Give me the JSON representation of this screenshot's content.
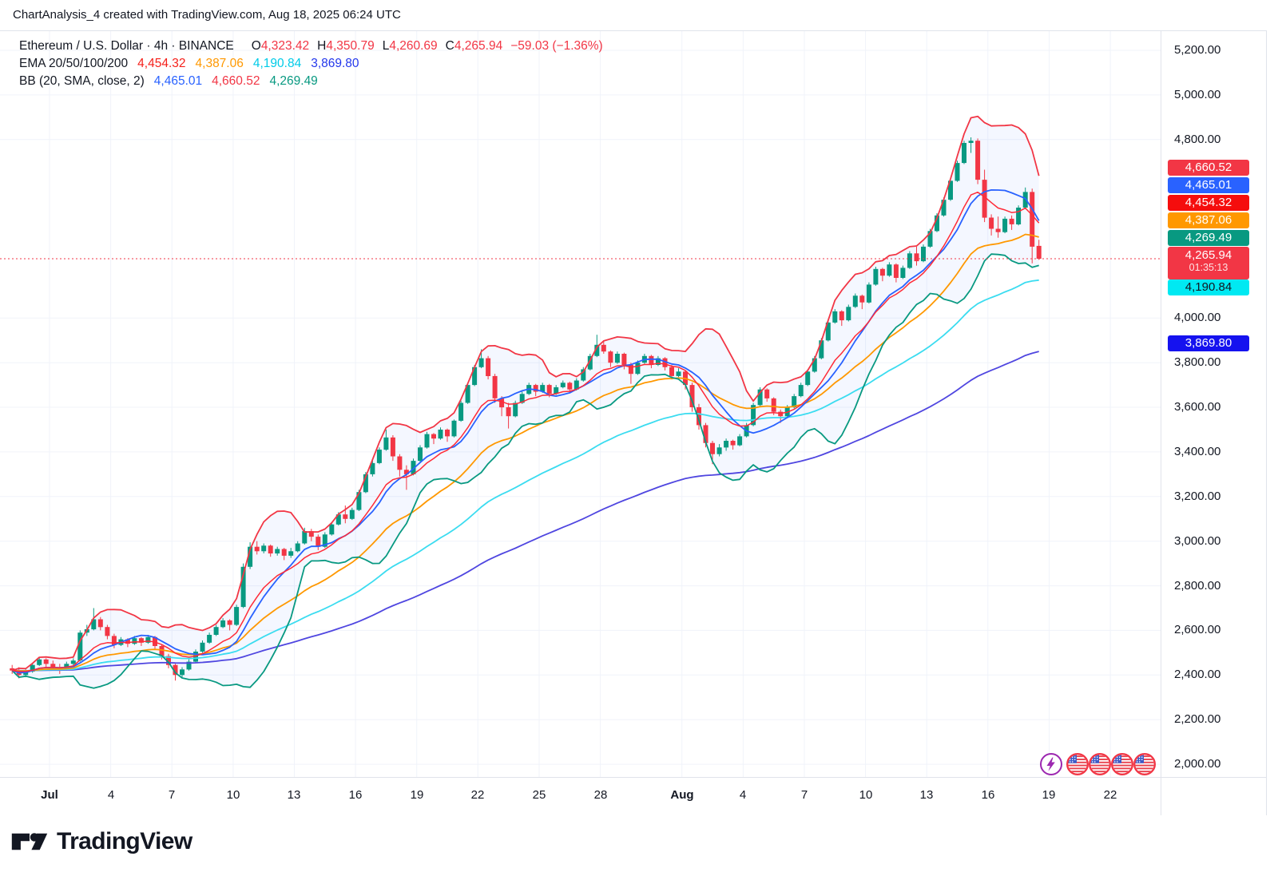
{
  "header": {
    "title": "ChartAnalysis_4 created with TradingView.com, Aug 18, 2025 06:24 UTC"
  },
  "legend": {
    "symbol": "Ethereum / U.S. Dollar · 4h · BINANCE",
    "ohlc": [
      {
        "label": "O",
        "value": "4,323.42"
      },
      {
        "label": "H",
        "value": "4,350.79"
      },
      {
        "label": "L",
        "value": "4,260.69"
      },
      {
        "label": "C",
        "value": "4,265.94"
      }
    ],
    "change": "−59.03 (−1.36%)",
    "ema": {
      "label": "EMA 20/50/100/200",
      "values": [
        {
          "text": "4,454.32",
          "color": "#F5201B"
        },
        {
          "text": "4,387.06",
          "color": "#FF9800"
        },
        {
          "text": "4,190.84",
          "color": "#00CBE8"
        },
        {
          "text": "3,869.80",
          "color": "#2337EC"
        }
      ]
    },
    "bb": {
      "label": "BB (20, SMA, close, 2)",
      "values": [
        {
          "text": "4,465.01",
          "color": "#2962FF"
        },
        {
          "text": "4,660.52",
          "color": "#F23645"
        },
        {
          "text": "4,269.49",
          "color": "#089981"
        }
      ]
    }
  },
  "price_scale": {
    "badges": [
      {
        "label": "4,660.52",
        "bg": "#F23645",
        "fg": "#FFFFFF"
      },
      {
        "label": "4,465.01",
        "bg": "#2962FF",
        "fg": "#FFFFFF"
      },
      {
        "label": "4,454.32",
        "bg": "#F50D0D",
        "fg": "#FFFFFF"
      },
      {
        "label": "4,387.06",
        "bg": "#FF9800",
        "fg": "#FFFFFF"
      },
      {
        "label": "4,269.49",
        "bg": "#089981",
        "fg": "#FFFFFF"
      },
      {
        "label": "4,265.94",
        "sub": "01:35:13",
        "bg": "#F23645",
        "fg": "#FFFFFF"
      },
      {
        "label": "4,190.84",
        "bg": "#00E9F2",
        "fg": "#131722"
      },
      {
        "label": "3,869.80",
        "bg": "#1512EF",
        "fg": "#FFFFFF",
        "price": 3869.8
      }
    ]
  },
  "events": {
    "lightning": 1,
    "flag_count": 4
  },
  "footer": {
    "brand": "TradingView"
  },
  "theme": {
    "up": "#089981",
    "down": "#F23645",
    "grid": "#F0F3FA",
    "border": "#E0E3EB",
    "text": "#131722",
    "bb_fill": "rgba(41,98,255,0.05)",
    "bb_upper": "#F23645",
    "bb_basis": "#2962FF",
    "bb_lower": "#089981",
    "ema20": "#FF2B38",
    "ema50": "#FF9800",
    "ema100": "#3BDCF0",
    "ema200": "#4F46E0",
    "accent_purple": "#9C27B0",
    "flag_ring": "#F23645"
  },
  "chart_data": {
    "type": "candlestick",
    "title": "Ethereum / U.S. Dollar",
    "interval": "4h",
    "exchange": "BINANCE",
    "last_candle": {
      "open": 4323.42,
      "high": 4350.79,
      "low": 4260.69,
      "close": 4265.94,
      "change": -59.03,
      "change_pct": -1.36
    },
    "indicators": {
      "ema": {
        "label": "EMA 20/50/100/200",
        "last_values": [
          4454.32,
          4387.06,
          4190.84,
          3869.8
        ]
      },
      "bb": {
        "label": "BB (20, SMA, close, 2)",
        "basis": 4465.01,
        "upper": 4660.52,
        "lower": 4269.49
      }
    },
    "last_price": 4265.94,
    "countdown": "01:35:13",
    "y_ticks": [
      {
        "label": "5,200.00",
        "price": 5200
      },
      {
        "label": "5,000.00",
        "price": 5000
      },
      {
        "label": "4,800.00",
        "price": 4800
      },
      {
        "label": "4,000.00",
        "price": 4000
      },
      {
        "label": "3,800.00",
        "price": 3800
      },
      {
        "label": "3,600.00",
        "price": 3600
      },
      {
        "label": "3,400.00",
        "price": 3400
      },
      {
        "label": "3,200.00",
        "price": 3200
      },
      {
        "label": "3,000.00",
        "price": 3000
      },
      {
        "label": "2,800.00",
        "price": 2800
      },
      {
        "label": "2,600.00",
        "price": 2600
      },
      {
        "label": "2,400.00",
        "price": 2400
      },
      {
        "label": "2,200.00",
        "price": 2200
      },
      {
        "label": "2,000.00",
        "price": 2000
      }
    ],
    "x_ticks": [
      {
        "label": "Jul",
        "day": 0,
        "bold": true
      },
      {
        "label": "4",
        "day": 3
      },
      {
        "label": "7",
        "day": 6
      },
      {
        "label": "10",
        "day": 9
      },
      {
        "label": "13",
        "day": 12
      },
      {
        "label": "16",
        "day": 15
      },
      {
        "label": "19",
        "day": 18
      },
      {
        "label": "22",
        "day": 21
      },
      {
        "label": "25",
        "day": 24
      },
      {
        "label": "28",
        "day": 27
      },
      {
        "label": "Aug",
        "day": 31,
        "bold": true
      },
      {
        "label": "4",
        "day": 34
      },
      {
        "label": "7",
        "day": 37
      },
      {
        "label": "10",
        "day": 40
      },
      {
        "label": "13",
        "day": 43
      },
      {
        "label": "16",
        "day": 46
      },
      {
        "label": "19",
        "day": 49
      },
      {
        "label": "22",
        "day": 52
      }
    ],
    "render": {
      "candles_per_day": 3,
      "start_day": -2,
      "ema_periods": [
        10,
        25,
        50,
        100
      ],
      "bb": {
        "period": 10,
        "mult": 2
      }
    },
    "candles": [
      [
        2430,
        2445,
        2405,
        2420
      ],
      [
        2420,
        2435,
        2385,
        2400
      ],
      [
        2400,
        2425,
        2390,
        2415
      ],
      [
        2415,
        2455,
        2410,
        2445
      ],
      [
        2445,
        2480,
        2440,
        2470
      ],
      [
        2470,
        2475,
        2430,
        2450
      ],
      [
        2450,
        2465,
        2420,
        2435
      ],
      [
        2435,
        2450,
        2405,
        2425
      ],
      [
        2425,
        2460,
        2420,
        2450
      ],
      [
        2450,
        2475,
        2440,
        2465
      ],
      [
        2465,
        2600,
        2460,
        2590
      ],
      [
        2590,
        2625,
        2575,
        2605
      ],
      [
        2605,
        2700,
        2600,
        2650
      ],
      [
        2650,
        2660,
        2600,
        2615
      ],
      [
        2615,
        2625,
        2560,
        2575
      ],
      [
        2575,
        2585,
        2520,
        2535
      ],
      [
        2535,
        2570,
        2530,
        2560
      ],
      [
        2560,
        2565,
        2525,
        2540
      ],
      [
        2540,
        2575,
        2535,
        2565
      ],
      [
        2565,
        2570,
        2530,
        2545
      ],
      [
        2545,
        2580,
        2540,
        2570
      ],
      [
        2570,
        2575,
        2515,
        2530
      ],
      [
        2530,
        2535,
        2470,
        2485
      ],
      [
        2485,
        2495,
        2430,
        2445
      ],
      [
        2445,
        2450,
        2375,
        2400
      ],
      [
        2400,
        2435,
        2390,
        2425
      ],
      [
        2425,
        2470,
        2420,
        2460
      ],
      [
        2460,
        2515,
        2455,
        2505
      ],
      [
        2505,
        2555,
        2500,
        2545
      ],
      [
        2545,
        2590,
        2540,
        2580
      ],
      [
        2580,
        2625,
        2575,
        2615
      ],
      [
        2615,
        2655,
        2610,
        2645
      ],
      [
        2645,
        2650,
        2600,
        2625
      ],
      [
        2625,
        2715,
        2620,
        2705
      ],
      [
        2705,
        2900,
        2700,
        2885
      ],
      [
        2885,
        2995,
        2875,
        2975
      ],
      [
        2975,
        3000,
        2940,
        2955
      ],
      [
        2955,
        2990,
        2945,
        2980
      ],
      [
        2980,
        2985,
        2930,
        2945
      ],
      [
        2945,
        2975,
        2935,
        2965
      ],
      [
        2965,
        2970,
        2915,
        2935
      ],
      [
        2935,
        2970,
        2925,
        2955
      ],
      [
        2955,
        3000,
        2950,
        2990
      ],
      [
        2990,
        3060,
        2985,
        3045
      ],
      [
        3045,
        3055,
        3000,
        3020
      ],
      [
        3020,
        3030,
        2960,
        2975
      ],
      [
        2975,
        3040,
        2970,
        3030
      ],
      [
        3030,
        3085,
        3025,
        3075
      ],
      [
        3075,
        3130,
        3070,
        3120
      ],
      [
        3120,
        3160,
        3080,
        3100
      ],
      [
        3100,
        3150,
        3095,
        3140
      ],
      [
        3140,
        3230,
        3135,
        3220
      ],
      [
        3220,
        3310,
        3215,
        3300
      ],
      [
        3300,
        3365,
        3290,
        3350
      ],
      [
        3350,
        3420,
        3345,
        3410
      ],
      [
        3410,
        3500,
        3405,
        3465
      ],
      [
        3465,
        3475,
        3360,
        3380
      ],
      [
        3380,
        3390,
        3290,
        3320
      ],
      [
        3320,
        3340,
        3230,
        3300
      ],
      [
        3300,
        3370,
        3295,
        3360
      ],
      [
        3360,
        3430,
        3355,
        3420
      ],
      [
        3420,
        3490,
        3415,
        3480
      ],
      [
        3480,
        3485,
        3435,
        3460
      ],
      [
        3460,
        3510,
        3455,
        3500
      ],
      [
        3500,
        3505,
        3445,
        3470
      ],
      [
        3470,
        3545,
        3465,
        3540
      ],
      [
        3540,
        3630,
        3535,
        3620
      ],
      [
        3620,
        3710,
        3615,
        3700
      ],
      [
        3700,
        3790,
        3695,
        3780
      ],
      [
        3780,
        3860,
        3775,
        3820
      ],
      [
        3820,
        3830,
        3725,
        3740
      ],
      [
        3740,
        3750,
        3620,
        3640
      ],
      [
        3640,
        3650,
        3560,
        3600
      ],
      [
        3600,
        3620,
        3505,
        3560
      ],
      [
        3560,
        3630,
        3555,
        3620
      ],
      [
        3620,
        3670,
        3615,
        3660
      ],
      [
        3660,
        3710,
        3655,
        3700
      ],
      [
        3700,
        3705,
        3650,
        3670
      ],
      [
        3670,
        3710,
        3665,
        3700
      ],
      [
        3700,
        3705,
        3645,
        3660
      ],
      [
        3660,
        3700,
        3655,
        3690
      ],
      [
        3690,
        3720,
        3685,
        3710
      ],
      [
        3710,
        3715,
        3665,
        3680
      ],
      [
        3680,
        3730,
        3675,
        3720
      ],
      [
        3720,
        3780,
        3715,
        3770
      ],
      [
        3770,
        3840,
        3765,
        3830
      ],
      [
        3830,
        3925,
        3825,
        3880
      ],
      [
        3880,
        3900,
        3840,
        3850
      ],
      [
        3850,
        3855,
        3780,
        3800
      ],
      [
        3800,
        3850,
        3795,
        3840
      ],
      [
        3840,
        3845,
        3770,
        3790
      ],
      [
        3790,
        3800,
        3705,
        3750
      ],
      [
        3750,
        3810,
        3745,
        3800
      ],
      [
        3800,
        3840,
        3795,
        3830
      ],
      [
        3830,
        3835,
        3775,
        3790
      ],
      [
        3790,
        3830,
        3785,
        3820
      ],
      [
        3820,
        3825,
        3765,
        3780
      ],
      [
        3780,
        3790,
        3725,
        3740
      ],
      [
        3740,
        3775,
        3735,
        3760
      ],
      [
        3760,
        3765,
        3680,
        3700
      ],
      [
        3700,
        3710,
        3580,
        3600
      ],
      [
        3600,
        3615,
        3500,
        3520
      ],
      [
        3520,
        3530,
        3420,
        3440
      ],
      [
        3440,
        3450,
        3345,
        3390
      ],
      [
        3390,
        3435,
        3380,
        3420
      ],
      [
        3420,
        3460,
        3405,
        3450
      ],
      [
        3450,
        3455,
        3410,
        3430
      ],
      [
        3430,
        3480,
        3425,
        3470
      ],
      [
        3470,
        3530,
        3465,
        3520
      ],
      [
        3520,
        3620,
        3515,
        3610
      ],
      [
        3610,
        3690,
        3605,
        3680
      ],
      [
        3680,
        3685,
        3625,
        3640
      ],
      [
        3640,
        3645,
        3565,
        3580
      ],
      [
        3580,
        3590,
        3530,
        3560
      ],
      [
        3560,
        3610,
        3555,
        3600
      ],
      [
        3600,
        3660,
        3595,
        3650
      ],
      [
        3650,
        3710,
        3645,
        3700
      ],
      [
        3700,
        3770,
        3695,
        3760
      ],
      [
        3760,
        3830,
        3755,
        3820
      ],
      [
        3820,
        3910,
        3815,
        3900
      ],
      [
        3900,
        3990,
        3895,
        3980
      ],
      [
        3980,
        4040,
        3975,
        4030
      ],
      [
        4030,
        4035,
        3965,
        3990
      ],
      [
        3990,
        4060,
        3985,
        4050
      ],
      [
        4050,
        4110,
        4045,
        4100
      ],
      [
        4100,
        4105,
        4040,
        4070
      ],
      [
        4070,
        4160,
        4065,
        4150
      ],
      [
        4150,
        4230,
        4145,
        4220
      ],
      [
        4220,
        4225,
        4165,
        4190
      ],
      [
        4190,
        4250,
        4185,
        4240
      ],
      [
        4240,
        4245,
        4160,
        4180
      ],
      [
        4180,
        4235,
        4175,
        4225
      ],
      [
        4225,
        4300,
        4220,
        4290
      ],
      [
        4290,
        4320,
        4235,
        4255
      ],
      [
        4255,
        4330,
        4250,
        4320
      ],
      [
        4320,
        4400,
        4315,
        4390
      ],
      [
        4390,
        4470,
        4385,
        4460
      ],
      [
        4460,
        4540,
        4455,
        4530
      ],
      [
        4530,
        4625,
        4525,
        4615
      ],
      [
        4615,
        4705,
        4610,
        4695
      ],
      [
        4695,
        4795,
        4690,
        4785
      ],
      [
        4785,
        4810,
        4740,
        4795
      ],
      [
        4795,
        4805,
        4600,
        4620
      ],
      [
        4620,
        4665,
        4430,
        4450
      ],
      [
        4450,
        4465,
        4370,
        4400
      ],
      [
        4400,
        4455,
        4360,
        4385
      ],
      [
        4385,
        4455,
        4380,
        4445
      ],
      [
        4445,
        4460,
        4395,
        4420
      ],
      [
        4420,
        4505,
        4415,
        4495
      ],
      [
        4495,
        4585,
        4490,
        4565
      ],
      [
        4565,
        4580,
        4245,
        4320
      ],
      [
        4323.42,
        4350.79,
        4260.69,
        4265.94
      ]
    ]
  }
}
